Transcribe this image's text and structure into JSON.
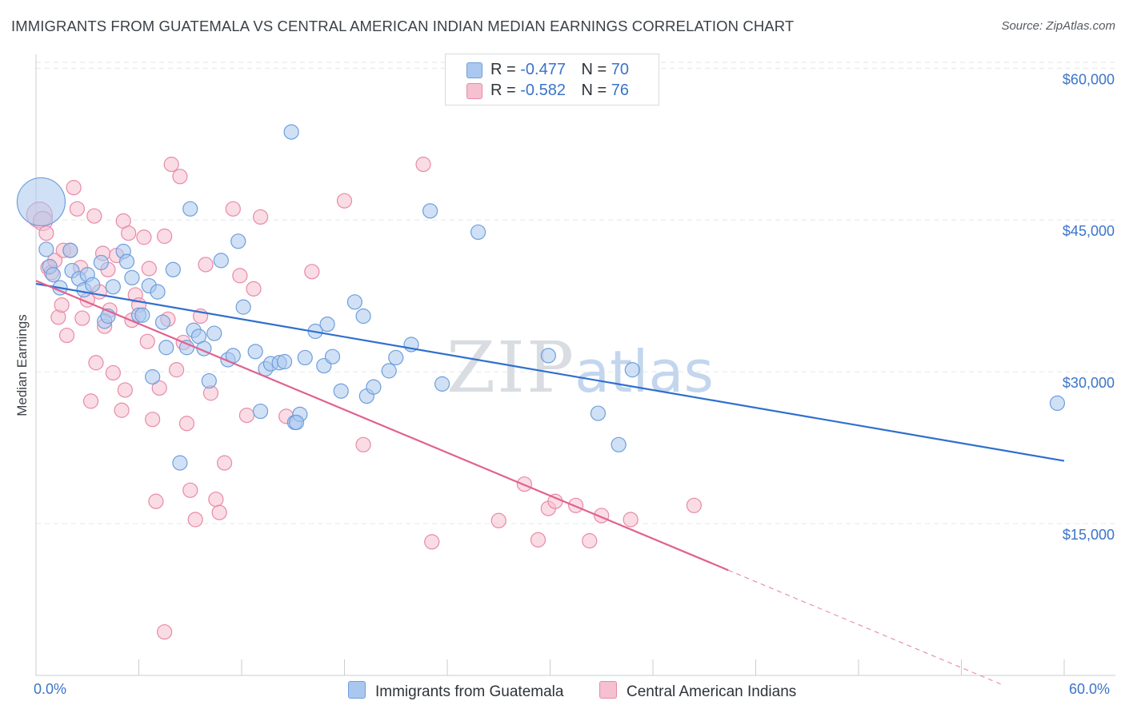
{
  "title": "IMMIGRANTS FROM GUATEMALA VS CENTRAL AMERICAN INDIAN MEDIAN EARNINGS CORRELATION CHART",
  "source": "Source: ZipAtlas.com",
  "watermark": {
    "zip": "ZIP",
    "atlas": "atlas"
  },
  "legend": {
    "rows": [
      {
        "r_label": "R = ",
        "r_value": "-0.477",
        "n_label": "N = ",
        "n_value": "70"
      },
      {
        "r_label": "R = ",
        "r_value": "-0.582",
        "n_label": "N = ",
        "n_value": "76"
      }
    ]
  },
  "x_labels": {
    "min": "0.0%",
    "max": "60.0%"
  },
  "colors": {
    "blue_fill": "#aac8ef",
    "blue_stroke": "#6f9edc",
    "blue_line": "#2f6fce",
    "pink_fill": "#f5c0d0",
    "pink_stroke": "#e88aa8",
    "pink_line": "#e0628e",
    "grid": "#e3e6ea",
    "tick_label": "#3b74c9"
  },
  "chart_data": {
    "type": "scatter",
    "title": "IMMIGRANTS FROM GUATEMALA VS CENTRAL AMERICAN INDIAN MEDIAN EARNINGS CORRELATION CHART",
    "xlabel": "",
    "ylabel": "Median Earnings",
    "xlim": [
      0,
      60
    ],
    "ylim": [
      0,
      62000
    ],
    "y_ticks": [
      {
        "value": 15000,
        "label": "$15,000"
      },
      {
        "value": 30000,
        "label": "$30,000"
      },
      {
        "value": 45000,
        "label": "$45,000"
      },
      {
        "value": 60000,
        "label": "$60,000"
      }
    ],
    "legend_position": "top-center",
    "series": [
      {
        "name": "Immigrants from Guatemala",
        "color": "#6f9edc",
        "R": -0.477,
        "N": 70,
        "trend": {
          "x0": 0,
          "y0": 38700,
          "x1": 60,
          "y1": 21200,
          "dashed_from": null
        },
        "points": [
          [
            0.3,
            46800,
            30
          ],
          [
            0.6,
            42100,
            9
          ],
          [
            0.8,
            40400,
            9
          ],
          [
            1.0,
            39600,
            9
          ],
          [
            1.4,
            38300,
            9
          ],
          [
            2.0,
            42000,
            9
          ],
          [
            2.1,
            40000,
            9
          ],
          [
            2.5,
            39200,
            9
          ],
          [
            2.8,
            38100,
            9
          ],
          [
            3.0,
            39600,
            9
          ],
          [
            3.3,
            38600,
            9
          ],
          [
            3.8,
            40800,
            9
          ],
          [
            4.0,
            35000,
            9
          ],
          [
            4.2,
            35500,
            9
          ],
          [
            4.5,
            38400,
            9
          ],
          [
            5.1,
            41900,
            9
          ],
          [
            5.3,
            40900,
            9
          ],
          [
            5.6,
            39300,
            9
          ],
          [
            6.0,
            35600,
            9
          ],
          [
            6.2,
            35600,
            9
          ],
          [
            6.6,
            38500,
            9
          ],
          [
            6.8,
            29500,
            9
          ],
          [
            7.1,
            37900,
            9
          ],
          [
            7.4,
            34900,
            9
          ],
          [
            7.6,
            32400,
            9
          ],
          [
            8.0,
            40100,
            9
          ],
          [
            8.4,
            21000,
            9
          ],
          [
            8.8,
            32400,
            9
          ],
          [
            9.0,
            46100,
            9
          ],
          [
            9.2,
            34100,
            9
          ],
          [
            9.5,
            33500,
            9
          ],
          [
            9.8,
            32300,
            9
          ],
          [
            10.1,
            29100,
            9
          ],
          [
            10.4,
            33800,
            9
          ],
          [
            10.8,
            41000,
            9
          ],
          [
            11.2,
            31200,
            9
          ],
          [
            11.5,
            31600,
            9
          ],
          [
            11.8,
            42900,
            9
          ],
          [
            12.1,
            36400,
            9
          ],
          [
            12.8,
            32000,
            9
          ],
          [
            13.1,
            26100,
            9
          ],
          [
            13.4,
            30300,
            9
          ],
          [
            13.7,
            30800,
            9
          ],
          [
            14.2,
            30900,
            9
          ],
          [
            14.5,
            31000,
            9
          ],
          [
            14.9,
            53700,
            9
          ],
          [
            15.1,
            25000,
            9
          ],
          [
            15.4,
            25800,
            9
          ],
          [
            15.7,
            31400,
            9
          ],
          [
            16.3,
            34000,
            9
          ],
          [
            16.8,
            30600,
            9
          ],
          [
            17.0,
            34700,
            9
          ],
          [
            17.3,
            31500,
            9
          ],
          [
            17.8,
            28100,
            9
          ],
          [
            18.6,
            36900,
            9
          ],
          [
            19.1,
            35500,
            9
          ],
          [
            19.3,
            27600,
            9
          ],
          [
            19.7,
            28500,
            9
          ],
          [
            20.6,
            30100,
            9
          ],
          [
            21.0,
            31400,
            9
          ],
          [
            21.9,
            32700,
            9
          ],
          [
            23.0,
            45900,
            9
          ],
          [
            23.7,
            28800,
            9
          ],
          [
            25.8,
            43800,
            9
          ],
          [
            29.9,
            31600,
            9
          ],
          [
            32.8,
            25900,
            9
          ],
          [
            34.0,
            22800,
            9
          ],
          [
            34.8,
            30200,
            9
          ],
          [
            59.6,
            26900,
            9
          ],
          [
            15.2,
            25000,
            9
          ]
        ]
      },
      {
        "name": "Central American Indians",
        "color": "#e88aa8",
        "R": -0.582,
        "N": 76,
        "trend": {
          "x0": 0,
          "y0": 39000,
          "x1": 56.5,
          "y1": -1000,
          "dashed_from": 40.4
        },
        "points": [
          [
            0.2,
            45500,
            16
          ],
          [
            0.4,
            44900,
            12
          ],
          [
            0.6,
            43700,
            9
          ],
          [
            0.7,
            40300,
            9
          ],
          [
            0.9,
            39800,
            9
          ],
          [
            1.1,
            41000,
            9
          ],
          [
            1.3,
            35400,
            9
          ],
          [
            1.5,
            36600,
            9
          ],
          [
            1.6,
            42000,
            9
          ],
          [
            1.8,
            33600,
            9
          ],
          [
            2.0,
            42000,
            9
          ],
          [
            2.2,
            48200,
            9
          ],
          [
            2.4,
            46100,
            9
          ],
          [
            2.6,
            40300,
            9
          ],
          [
            2.7,
            35300,
            9
          ],
          [
            3.0,
            37100,
            9
          ],
          [
            3.2,
            27100,
            9
          ],
          [
            3.4,
            45400,
            9
          ],
          [
            3.5,
            30900,
            9
          ],
          [
            3.7,
            37900,
            9
          ],
          [
            3.9,
            41700,
            9
          ],
          [
            4.0,
            34500,
            9
          ],
          [
            4.2,
            40100,
            9
          ],
          [
            4.3,
            36100,
            9
          ],
          [
            4.5,
            29900,
            9
          ],
          [
            4.7,
            41500,
            9
          ],
          [
            5.0,
            26200,
            9
          ],
          [
            5.1,
            44900,
            9
          ],
          [
            5.2,
            28200,
            9
          ],
          [
            5.4,
            43700,
            9
          ],
          [
            5.6,
            35100,
            9
          ],
          [
            5.8,
            37600,
            9
          ],
          [
            6.0,
            36600,
            9
          ],
          [
            6.3,
            43300,
            9
          ],
          [
            6.5,
            33000,
            9
          ],
          [
            6.6,
            40200,
            9
          ],
          [
            6.8,
            25300,
            9
          ],
          [
            7.0,
            17200,
            9
          ],
          [
            7.2,
            28400,
            9
          ],
          [
            7.5,
            43400,
            9
          ],
          [
            7.7,
            35200,
            9
          ],
          [
            7.9,
            50500,
            9
          ],
          [
            8.2,
            30200,
            9
          ],
          [
            8.4,
            49300,
            9
          ],
          [
            8.6,
            32900,
            9
          ],
          [
            8.8,
            24900,
            9
          ],
          [
            9.0,
            18300,
            9
          ],
          [
            9.3,
            15400,
            9
          ],
          [
            9.6,
            35500,
            9
          ],
          [
            9.9,
            40600,
            9
          ],
          [
            10.2,
            27900,
            9
          ],
          [
            10.5,
            17400,
            9
          ],
          [
            10.7,
            16100,
            9
          ],
          [
            11.0,
            21000,
            9
          ],
          [
            11.5,
            46100,
            9
          ],
          [
            11.9,
            39500,
            9
          ],
          [
            12.3,
            25700,
            9
          ],
          [
            12.7,
            38200,
            9
          ],
          [
            13.1,
            45300,
            9
          ],
          [
            14.6,
            25600,
            9
          ],
          [
            16.1,
            39900,
            9
          ],
          [
            18.0,
            46900,
            9
          ],
          [
            19.1,
            22800,
            9
          ],
          [
            22.6,
            50500,
            9
          ],
          [
            23.1,
            13200,
            9
          ],
          [
            27.0,
            15300,
            9
          ],
          [
            28.5,
            18900,
            9
          ],
          [
            29.3,
            13400,
            9
          ],
          [
            29.9,
            16500,
            9
          ],
          [
            30.3,
            17200,
            9
          ],
          [
            31.5,
            16800,
            9
          ],
          [
            32.3,
            13300,
            9
          ],
          [
            33.0,
            15800,
            9
          ],
          [
            34.7,
            15400,
            9
          ],
          [
            38.4,
            16800,
            9
          ],
          [
            7.5,
            4300,
            9
          ]
        ]
      }
    ]
  }
}
